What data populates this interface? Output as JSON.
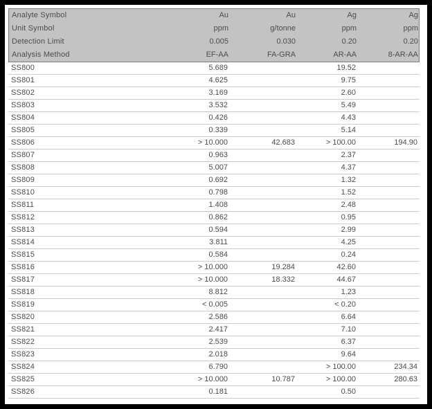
{
  "header_rows": [
    {
      "label": "Analyte Symbol",
      "values": [
        "Au",
        "Au",
        "Ag",
        "Ag"
      ]
    },
    {
      "label": "Unit Symbol",
      "values": [
        "ppm",
        "g/tonne",
        "ppm",
        "ppm"
      ]
    },
    {
      "label": "Detection Limit",
      "values": [
        "0.005",
        "0.030",
        "0.20",
        "0.20"
      ]
    },
    {
      "label": "Analysis Method",
      "values": [
        "EF-AA",
        "FA-GRA",
        "AR-AA",
        "8-AR-AA"
      ]
    }
  ],
  "samples": [
    {
      "id": "SS800",
      "values": [
        "5.689",
        "",
        "19.52",
        ""
      ]
    },
    {
      "id": "SS801",
      "values": [
        "4.625",
        "",
        "9.75",
        ""
      ]
    },
    {
      "id": "SS802",
      "values": [
        "3.169",
        "",
        "2.60",
        ""
      ]
    },
    {
      "id": "SS803",
      "values": [
        "3.532",
        "",
        "5.49",
        ""
      ]
    },
    {
      "id": "SS804",
      "values": [
        "0.426",
        "",
        "4.43",
        ""
      ]
    },
    {
      "id": "SS805",
      "values": [
        "0.339",
        "",
        "5.14",
        ""
      ]
    },
    {
      "id": "SS806",
      "values": [
        "> 10.000",
        "42.683",
        "> 100.00",
        "194.90"
      ]
    },
    {
      "id": "SS807",
      "values": [
        "0.963",
        "",
        "2.37",
        ""
      ]
    },
    {
      "id": "SS808",
      "values": [
        "5.007",
        "",
        "4.37",
        ""
      ]
    },
    {
      "id": "SS809",
      "values": [
        "0.692",
        "",
        "1.32",
        ""
      ]
    },
    {
      "id": "SS810",
      "values": [
        "0.798",
        "",
        "1.52",
        ""
      ]
    },
    {
      "id": "SS811",
      "values": [
        "1.408",
        "",
        "2.48",
        ""
      ]
    },
    {
      "id": "SS812",
      "values": [
        "0.862",
        "",
        "0.95",
        ""
      ]
    },
    {
      "id": "SS813",
      "values": [
        "0.594",
        "",
        "2.99",
        ""
      ]
    },
    {
      "id": "SS814",
      "values": [
        "3.811",
        "",
        "4.25",
        ""
      ]
    },
    {
      "id": "SS815",
      "values": [
        "0.584",
        "",
        "0.24",
        ""
      ]
    },
    {
      "id": "SS816",
      "values": [
        "> 10.000",
        "19.284",
        "42.60",
        ""
      ]
    },
    {
      "id": "SS817",
      "values": [
        "> 10.000",
        "18.332",
        "44.67",
        ""
      ]
    },
    {
      "id": "SS818",
      "values": [
        "8.812",
        "",
        "1.23",
        ""
      ]
    },
    {
      "id": "SS819",
      "values": [
        "< 0.005",
        "",
        "< 0.20",
        ""
      ]
    },
    {
      "id": "SS820",
      "values": [
        "2.586",
        "",
        "6.64",
        ""
      ]
    },
    {
      "id": "SS821",
      "values": [
        "2.417",
        "",
        "7.10",
        ""
      ]
    },
    {
      "id": "SS822",
      "values": [
        "2.539",
        "",
        "6.37",
        ""
      ]
    },
    {
      "id": "SS823",
      "values": [
        "2.018",
        "",
        "9.64",
        ""
      ]
    },
    {
      "id": "SS824",
      "values": [
        "6.790",
        "",
        "> 100.00",
        "234.34"
      ]
    },
    {
      "id": "SS825",
      "values": [
        "> 10.000",
        "10.787",
        "> 100.00",
        "280.63"
      ]
    },
    {
      "id": "SS826",
      "values": [
        "0.181",
        "",
        "0.50",
        ""
      ]
    }
  ],
  "colors": {
    "frame": "#000000",
    "page_bg": "#ffffff",
    "header_bg": "#c3c3c3",
    "header_border": "#7b7b7b",
    "row_line": "#cbcbcb",
    "text": "#4b4b4b"
  }
}
